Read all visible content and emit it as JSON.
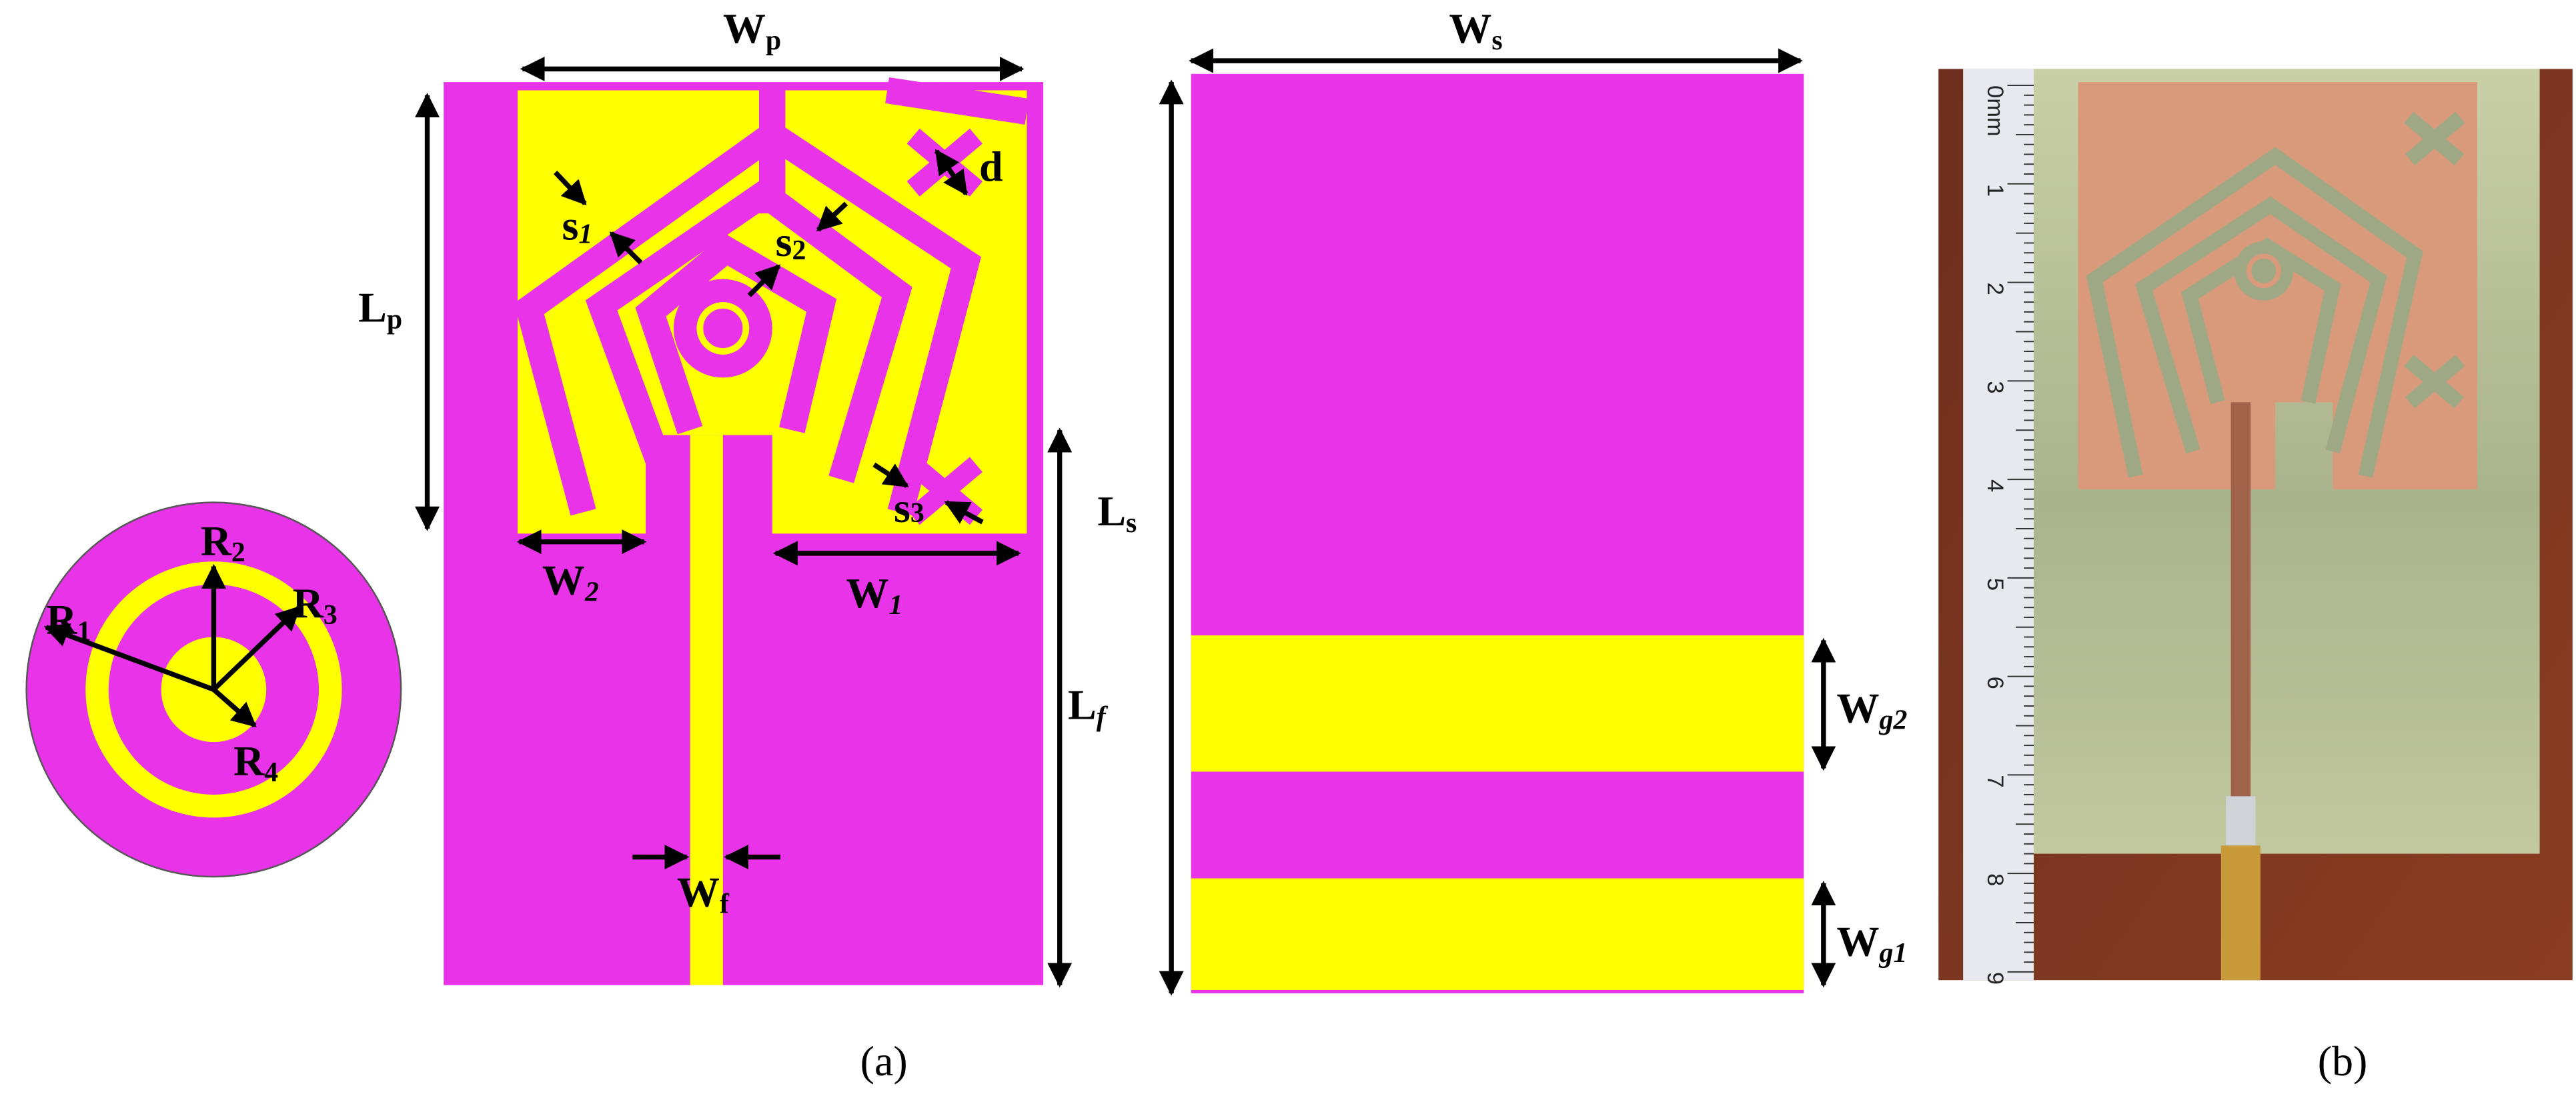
{
  "figure": {
    "panel_a_label": "(a)",
    "panel_b_label": "(b)",
    "dimensions": {
      "wp": {
        "base": "W",
        "sub": "p"
      },
      "ws": {
        "base": "W",
        "sub": "s"
      },
      "lp": {
        "base": "L",
        "sub": "p"
      },
      "ls": {
        "base": "L",
        "sub": "s"
      },
      "lf": {
        "base": "L",
        "sub": "f"
      },
      "w2": {
        "base": "W",
        "sub": "2"
      },
      "w1": {
        "base": "W",
        "sub": "1"
      },
      "wf": {
        "base": "W",
        "sub": "f"
      },
      "wg2": {
        "base": "W",
        "sub": "g2"
      },
      "wg1": {
        "base": "W",
        "sub": "g1"
      },
      "s1": {
        "base": "s",
        "sub": "1"
      },
      "s2": {
        "base": "s",
        "sub": "2"
      },
      "s3": {
        "base": "s",
        "sub": "3"
      },
      "d": {
        "base": "d"
      },
      "r1": {
        "base": "R",
        "sub": "1"
      },
      "r2": {
        "base": "R",
        "sub": "2"
      },
      "r3": {
        "base": "R",
        "sub": "3"
      },
      "r4": {
        "base": "R",
        "sub": "4"
      }
    },
    "ruler_marks": [
      "0mm",
      "1",
      "2",
      "3",
      "4",
      "5",
      "6",
      "7",
      "8",
      "9"
    ]
  }
}
